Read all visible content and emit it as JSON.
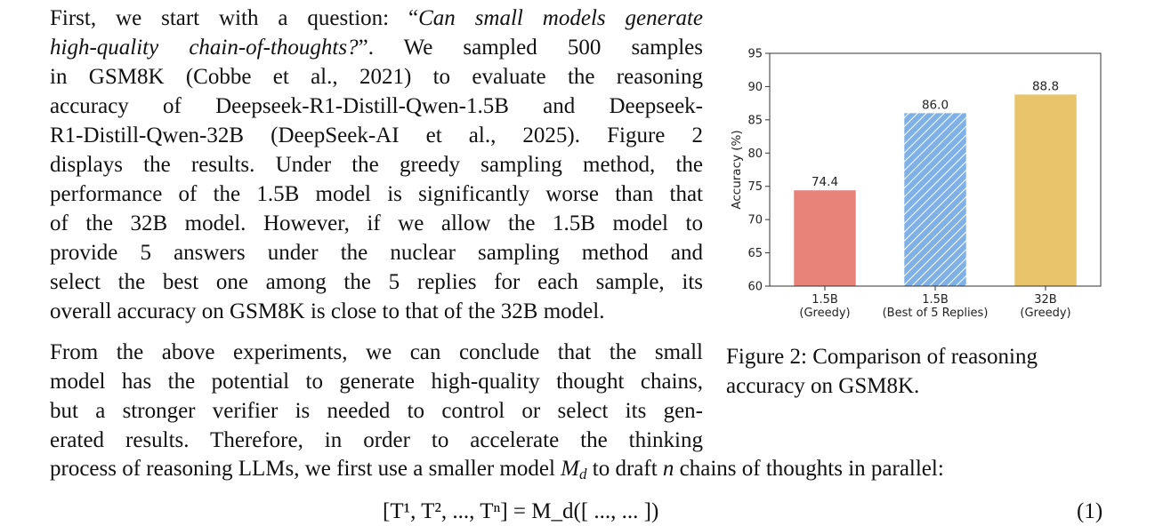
{
  "paragraph1": {
    "lines": [
      {
        "pre": "First, we start with a question: “",
        "italic": "Can small models generate",
        "post": ""
      },
      {
        "pre": "",
        "italic": "high-quality chain-of-thoughts?",
        "post": "”. We sampled 500 samples"
      },
      {
        "pre": "in GSM8K (Cobbe et al., 2021) to evaluate the reasoning",
        "italic": "",
        "post": ""
      },
      {
        "pre": "accuracy of Deepseek-R1-Distill-Qwen-1.5B and Deepseek-",
        "italic": "",
        "post": ""
      },
      {
        "pre": "R1-Distill-Qwen-32B (DeepSeek-AI et al., 2025). Figure 2",
        "italic": "",
        "post": ""
      },
      {
        "pre": "displays the results. Under the greedy sampling method, the",
        "italic": "",
        "post": ""
      },
      {
        "pre": "performance of the 1.5B model is significantly worse than that",
        "italic": "",
        "post": ""
      },
      {
        "pre": "of the 32B model. However, if we allow the 1.5B model to",
        "italic": "",
        "post": ""
      },
      {
        "pre": "provide 5 answers under the nuclear sampling method and",
        "italic": "",
        "post": ""
      },
      {
        "pre": "select the best one among the 5 replies for each sample, its",
        "italic": "",
        "post": ""
      },
      {
        "pre": "overall accuracy on GSM8K is close to that of the 32B model.",
        "italic": "",
        "post": ""
      }
    ]
  },
  "paragraph2": {
    "lines": [
      "From the above experiments, we can conclude that the small",
      "model has the potential to generate high-quality thought chains,",
      "but a stronger verifier is needed to control or select its gen-",
      "erated results. Therefore, in order to accelerate the thinking"
    ]
  },
  "paragraph3": {
    "text_a": "process of reasoning LLMs, we first use a smaller model ",
    "math_M": "M",
    "math_sub_d": "d",
    "text_b": " to draft ",
    "math_n": "n",
    "text_c": " chains of thoughts in parallel:"
  },
  "equation": {
    "text": "[T¹, T², ..., Tⁿ] = M_d([ ..., ... ])",
    "number": "(1)"
  },
  "figure": {
    "caption": "Figure 2: Comparison of reasoning accuracy on GSM8K."
  },
  "chart_data": {
    "type": "bar",
    "categories": [
      "1.5B\n(Greedy)",
      "1.5B\n(Best of 5 Replies)",
      "32B\n(Greedy)"
    ],
    "category_lines": [
      [
        "1.5B",
        "(Greedy)"
      ],
      [
        "1.5B",
        "(Best of 5 Replies)"
      ],
      [
        "32B",
        "(Greedy)"
      ]
    ],
    "values": [
      74.4,
      86.0,
      88.8
    ],
    "value_labels": [
      "74.4",
      "86.0",
      "88.8"
    ],
    "colors": [
      "#e8837a",
      "#7fb0e6",
      "#e9c46a"
    ],
    "hatched": [
      false,
      true,
      false
    ],
    "ylabel": "Accuracy (%)",
    "xlabel": "",
    "title": "",
    "ylim": [
      60,
      95
    ],
    "yticks": [
      60,
      65,
      70,
      75,
      80,
      85,
      90,
      95
    ],
    "grid": false
  }
}
